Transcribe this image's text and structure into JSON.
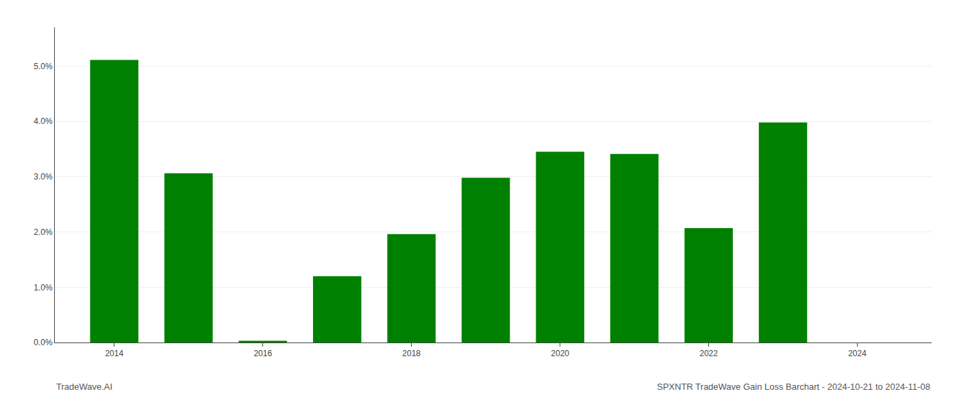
{
  "chart_data": {
    "type": "bar",
    "x": [
      2014,
      2015,
      2016,
      2017,
      2018,
      2019,
      2020,
      2021,
      2022,
      2023
    ],
    "values": [
      0.0511,
      0.0306,
      0.0003,
      0.012,
      0.0196,
      0.0298,
      0.0345,
      0.0341,
      0.0207,
      0.0398
    ],
    "color": "#008000",
    "xlim": [
      2013.2,
      2025.0
    ],
    "xticks": [
      2014,
      2016,
      2018,
      2020,
      2022,
      2024
    ],
    "ylim": [
      0,
      0.057
    ],
    "yticks": [
      {
        "value": 0.0,
        "label": "0.0%"
      },
      {
        "value": 0.01,
        "label": "1.0%"
      },
      {
        "value": 0.02,
        "label": "2.0%"
      },
      {
        "value": 0.03,
        "label": "3.0%"
      },
      {
        "value": 0.04,
        "label": "4.0%"
      },
      {
        "value": 0.05,
        "label": "5.0%"
      }
    ],
    "grid": true,
    "annotations": [
      "TradeWave.AI",
      "SPXNTR TradeWave Gain Loss Barchart - 2024-10-21 to 2024-11-08"
    ]
  }
}
